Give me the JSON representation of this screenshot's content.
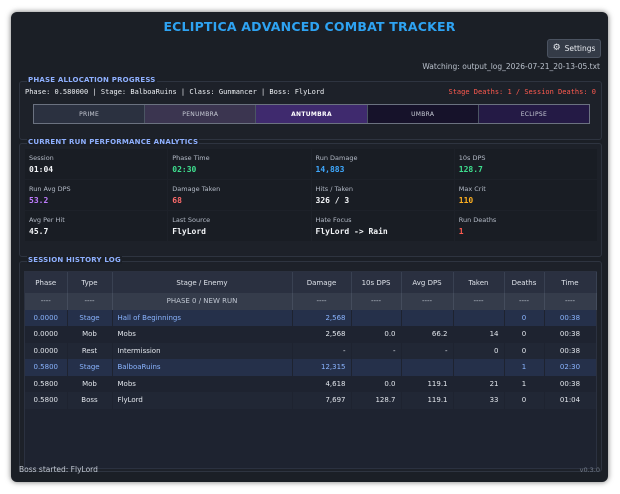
{
  "app": {
    "title": "ECLIPTICA ADVANCED COMBAT TRACKER",
    "settings_label": "Settings",
    "settings_icon": "gear-icon",
    "watching": "Watching: output_log_2026-07-21_20-13-05.txt"
  },
  "phase_section": {
    "title": "PHASE ALLOCATION PROGRESS",
    "info": "Phase: 0.580000 | Stage: BalboaRuins | Class: Gunmancer | Boss: FlyLord",
    "deaths": "Stage Deaths: 1 / Session Deaths: 0",
    "segments": [
      {
        "label": "PRIME",
        "color": "#2b3140",
        "active": false
      },
      {
        "label": "PENUMBRA",
        "color": "#3b3550",
        "active": false
      },
      {
        "label": "ANTUMBRA",
        "color": "#3f2a6e",
        "active": true
      },
      {
        "label": "UMBRA",
        "color": "#16122a",
        "active": false
      },
      {
        "label": "ECLIPSE",
        "color": "#241a45",
        "active": false
      }
    ]
  },
  "performance": {
    "title": "CURRENT RUN PERFORMANCE ANALYTICS",
    "metrics": [
      {
        "label": "Session",
        "value": "01:04",
        "color": "#f3f5f8"
      },
      {
        "label": "Phase Time",
        "value": "02:30",
        "color": "#3ee08f"
      },
      {
        "label": "Run Damage",
        "value": "14,883",
        "color": "#3fa9ff"
      },
      {
        "label": "10s DPS",
        "value": "128.7",
        "color": "#3ee08f"
      },
      {
        "label": "Run Avg DPS",
        "value": "53.2",
        "color": "#c07dff"
      },
      {
        "label": "Damage Taken",
        "value": "68",
        "color": "#ff6b6b"
      },
      {
        "label": "Hits / Taken",
        "value": "326 / 3",
        "color": "#f3f5f8"
      },
      {
        "label": "Max Crit",
        "value": "110",
        "color": "#ffb020"
      },
      {
        "label": "Avg Per Hit",
        "value": "45.7",
        "color": "#f3f5f8"
      },
      {
        "label": "Last Source",
        "value": "FlyLord",
        "color": "#f3f5f8"
      },
      {
        "label": "Hate Focus",
        "value": "FlyLord -> Rain",
        "color": "#f3f5f8"
      },
      {
        "label": "Run Deaths",
        "value": "1",
        "color": "#ff5a4f"
      }
    ]
  },
  "history": {
    "title": "SESSION HISTORY LOG",
    "columns": [
      "Phase",
      "Type",
      "Stage / Enemy",
      "Damage",
      "10s DPS",
      "Avg DPS",
      "Taken",
      "Deaths",
      "Time"
    ],
    "separator": [
      "----",
      "----",
      "PHASE 0 / NEW RUN",
      "----",
      "----",
      "----",
      "----",
      "----",
      "----"
    ],
    "rows": [
      {
        "kind": "stage",
        "cells": [
          "0.0000",
          "Stage",
          "Hall of Beginnings",
          "2,568",
          "",
          "",
          "",
          "0",
          "00:38"
        ]
      },
      {
        "kind": "normal",
        "cells": [
          "0.0000",
          "Mob",
          "Mobs",
          "2,568",
          "0.0",
          "66.2",
          "14",
          "0",
          "00:38"
        ]
      },
      {
        "kind": "normal",
        "cells": [
          "0.0000",
          "Rest",
          "Intermission",
          "-",
          "-",
          "-",
          "0",
          "0",
          "00:38"
        ]
      },
      {
        "kind": "stage",
        "cells": [
          "0.5800",
          "Stage",
          "BalboaRuins",
          "12,315",
          "",
          "",
          "",
          "1",
          "02:30"
        ]
      },
      {
        "kind": "normal",
        "cells": [
          "0.5800",
          "Mob",
          "Mobs",
          "4,618",
          "0.0",
          "119.1",
          "21",
          "1",
          "00:38"
        ]
      },
      {
        "kind": "normal",
        "cells": [
          "0.5800",
          "Boss",
          "FlyLord",
          "7,697",
          "128.7",
          "119.1",
          "33",
          "0",
          "01:04"
        ]
      }
    ]
  },
  "footer": {
    "status": "Boss started: FlyLord",
    "version": "v0.3.0"
  }
}
